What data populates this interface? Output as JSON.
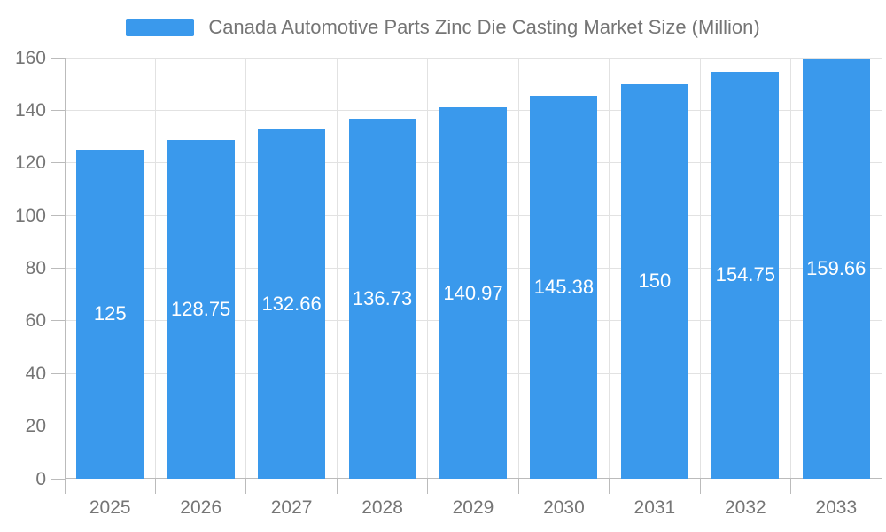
{
  "legend": {
    "label": "Canada Automotive Parts Zinc Die Casting Market Size (Million)"
  },
  "chart_data": {
    "type": "bar",
    "title": "Canada Automotive Parts Zinc Die Casting Market Size (Million)",
    "series_name": "Canada Automotive Parts Zinc Die Casting Market Size (Million)",
    "categories": [
      "2025",
      "2026",
      "2027",
      "2028",
      "2029",
      "2030",
      "2031",
      "2032",
      "2033"
    ],
    "values": [
      125,
      128.75,
      132.66,
      136.73,
      140.97,
      145.38,
      150,
      154.75,
      159.66
    ],
    "value_labels": [
      "125",
      "128.75",
      "132.66",
      "136.73",
      "140.97",
      "145.38",
      "150",
      "154.75",
      "159.66"
    ],
    "xlabel": "",
    "ylabel": "",
    "ylim": [
      0,
      160
    ],
    "yticks": [
      0,
      20,
      40,
      60,
      80,
      100,
      120,
      140,
      160
    ],
    "grid": true,
    "legend_position": "top-center",
    "bar_label_position": "inside-center",
    "colors": {
      "bar": "#3A99EC",
      "bar_label": "#FFFFFF",
      "grid_line": "#E2E2E2",
      "axis_line": "#BBBBBB",
      "axis_label": "#757575",
      "legend_text": "#757575",
      "background": "#FFFFFF"
    }
  }
}
